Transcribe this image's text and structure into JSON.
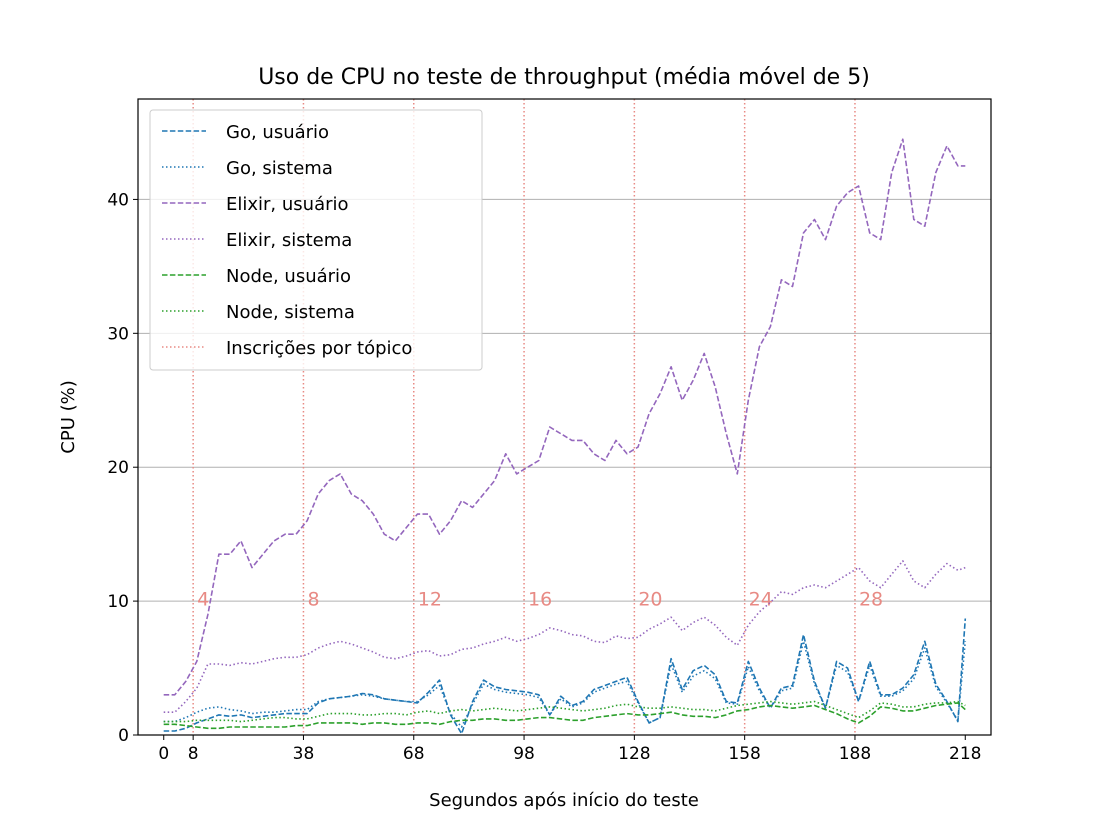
{
  "chart_data": {
    "type": "line",
    "title": "Uso de CPU no teste de throughput (média móvel de 5)",
    "xlabel": "Segundos após início do teste",
    "ylabel": "CPU (%)",
    "xlim": [
      -7,
      225
    ],
    "ylim": [
      0,
      47.5
    ],
    "xticks": [
      0,
      8,
      38,
      68,
      98,
      128,
      158,
      188,
      218
    ],
    "yticks": [
      0,
      10,
      20,
      30,
      40
    ],
    "grid": "y",
    "legend_position": "upper-left",
    "x": [
      0,
      3,
      6,
      9,
      12,
      15,
      18,
      21,
      24,
      27,
      30,
      33,
      36,
      39,
      42,
      45,
      48,
      51,
      54,
      57,
      60,
      63,
      66,
      69,
      72,
      75,
      78,
      81,
      84,
      87,
      90,
      93,
      96,
      99,
      102,
      105,
      108,
      111,
      114,
      117,
      120,
      123,
      126,
      129,
      132,
      135,
      138,
      141,
      144,
      147,
      150,
      153,
      156,
      159,
      162,
      165,
      168,
      171,
      174,
      177,
      180,
      183,
      186,
      189,
      192,
      195,
      198,
      201,
      204,
      207,
      210,
      213,
      216,
      218
    ],
    "series": [
      {
        "name": "Go, usuário",
        "color": "#1f77b4",
        "dash": "dashed",
        "values": [
          0.3,
          0.3,
          0.5,
          0.9,
          1.2,
          1.5,
          1.4,
          1.5,
          1.3,
          1.4,
          1.5,
          1.6,
          1.6,
          1.6,
          2.4,
          2.7,
          2.8,
          2.9,
          3.1,
          3.0,
          2.7,
          2.6,
          2.5,
          2.4,
          3.2,
          4.1,
          1.5,
          0.1,
          2.5,
          4.1,
          3.6,
          3.4,
          3.3,
          3.2,
          3.0,
          1.5,
          2.9,
          2.2,
          2.5,
          3.4,
          3.7,
          4.0,
          4.3,
          2.5,
          0.9,
          1.3,
          5.7,
          3.4,
          4.8,
          5.2,
          4.5,
          2.5,
          2.4,
          5.5,
          3.5,
          2.0,
          3.5,
          3.7,
          7.5,
          4.0,
          2.0,
          5.5,
          5.0,
          2.5,
          5.5,
          3.0,
          3.0,
          3.5,
          4.5,
          7.0,
          3.8,
          2.5,
          1.0,
          8.7
        ]
      },
      {
        "name": "Go, sistema",
        "color": "#1f77b4",
        "dash": "dotted",
        "values": [
          1.0,
          1.0,
          1.3,
          1.7,
          2.0,
          2.1,
          1.9,
          1.8,
          1.6,
          1.7,
          1.7,
          1.8,
          1.9,
          1.9,
          2.5,
          2.7,
          2.8,
          2.9,
          3.0,
          2.9,
          2.7,
          2.6,
          2.5,
          2.5,
          3.0,
          3.7,
          1.6,
          0.6,
          2.3,
          3.8,
          3.4,
          3.2,
          3.1,
          3.0,
          2.8,
          1.5,
          2.7,
          2.1,
          2.4,
          3.2,
          3.5,
          3.8,
          4.0,
          2.4,
          0.9,
          1.3,
          5.3,
          3.2,
          4.4,
          4.8,
          4.2,
          2.4,
          2.3,
          5.1,
          3.3,
          2.0,
          3.3,
          3.5,
          7.0,
          3.8,
          2.0,
          5.2,
          4.7,
          2.5,
          5.2,
          2.9,
          2.9,
          3.3,
          4.2,
          6.5,
          3.6,
          2.4,
          1.1,
          7.0
        ]
      },
      {
        "name": "Elixir, usuário",
        "color": "#9467bd",
        "dash": "dashed",
        "values": [
          3.0,
          3.0,
          4.0,
          5.5,
          9.0,
          13.5,
          13.5,
          14.5,
          12.5,
          13.5,
          14.5,
          15.0,
          15.0,
          16.0,
          18.0,
          19.0,
          19.5,
          18.0,
          17.5,
          16.5,
          15.0,
          14.5,
          15.5,
          16.5,
          16.5,
          15.0,
          16.0,
          17.5,
          17.0,
          18.0,
          19.0,
          21.0,
          19.5,
          20.0,
          20.5,
          23.0,
          22.5,
          22.0,
          22.0,
          21.0,
          20.5,
          22.0,
          21.0,
          21.5,
          24.0,
          25.5,
          27.5,
          25.0,
          26.5,
          28.5,
          26.0,
          22.5,
          19.5,
          25.0,
          29.0,
          30.5,
          34.0,
          33.5,
          37.5,
          38.5,
          37.0,
          39.5,
          40.5,
          41.0,
          37.5,
          37.0,
          42.0,
          44.5,
          38.5,
          38.0,
          42.0,
          44.0,
          42.5,
          42.5
        ]
      },
      {
        "name": "Elixir, sistema",
        "color": "#9467bd",
        "dash": "dotted",
        "values": [
          1.7,
          1.7,
          2.5,
          3.5,
          5.3,
          5.3,
          5.2,
          5.4,
          5.3,
          5.5,
          5.7,
          5.8,
          5.8,
          6.0,
          6.5,
          6.8,
          7.0,
          6.8,
          6.5,
          6.2,
          5.8,
          5.7,
          5.9,
          6.2,
          6.3,
          5.9,
          6.0,
          6.4,
          6.5,
          6.8,
          7.0,
          7.3,
          7.0,
          7.2,
          7.5,
          8.0,
          7.8,
          7.5,
          7.4,
          7.0,
          6.9,
          7.4,
          7.2,
          7.3,
          7.9,
          8.3,
          8.8,
          7.8,
          8.4,
          8.8,
          8.2,
          7.3,
          6.7,
          8.2,
          9.2,
          9.9,
          10.7,
          10.5,
          11.0,
          11.2,
          11.0,
          11.5,
          12.0,
          12.5,
          11.5,
          11.0,
          12.0,
          13.0,
          11.5,
          11.0,
          12.0,
          12.8,
          12.3,
          12.5
        ]
      },
      {
        "name": "Node, usuário",
        "color": "#2ca02c",
        "dash": "dashed",
        "values": [
          0.8,
          0.8,
          0.7,
          0.6,
          0.5,
          0.5,
          0.6,
          0.6,
          0.6,
          0.6,
          0.6,
          0.6,
          0.7,
          0.7,
          0.9,
          0.9,
          0.9,
          0.9,
          0.8,
          0.9,
          0.9,
          0.8,
          0.8,
          0.9,
          0.9,
          0.8,
          1.0,
          1.1,
          1.1,
          1.2,
          1.2,
          1.1,
          1.1,
          1.2,
          1.3,
          1.3,
          1.2,
          1.1,
          1.1,
          1.3,
          1.4,
          1.5,
          1.6,
          1.5,
          1.5,
          1.6,
          1.7,
          1.5,
          1.4,
          1.4,
          1.3,
          1.5,
          1.8,
          1.9,
          2.1,
          2.2,
          2.1,
          2.0,
          2.1,
          2.2,
          1.9,
          1.6,
          1.2,
          0.9,
          1.4,
          2.1,
          2.0,
          1.8,
          1.8,
          2.0,
          2.2,
          2.3,
          2.4,
          1.9
        ]
      },
      {
        "name": "Node, sistema",
        "color": "#2ca02c",
        "dash": "dotted",
        "values": [
          1.0,
          1.0,
          1.0,
          1.1,
          1.1,
          1.1,
          1.1,
          1.0,
          1.1,
          1.2,
          1.3,
          1.3,
          1.2,
          1.2,
          1.4,
          1.6,
          1.6,
          1.6,
          1.5,
          1.5,
          1.6,
          1.6,
          1.5,
          1.7,
          1.8,
          1.6,
          1.8,
          1.9,
          1.8,
          1.9,
          2.0,
          1.9,
          1.8,
          1.9,
          2.0,
          2.1,
          2.0,
          1.9,
          1.8,
          1.9,
          2.0,
          2.2,
          2.3,
          2.1,
          2.0,
          2.0,
          2.1,
          2.0,
          1.9,
          1.9,
          1.8,
          2.0,
          2.2,
          2.3,
          2.4,
          2.5,
          2.4,
          2.3,
          2.4,
          2.5,
          2.2,
          1.9,
          1.6,
          1.3,
          1.8,
          2.4,
          2.3,
          2.1,
          2.1,
          2.3,
          2.4,
          2.4,
          2.5,
          2.2
        ]
      }
    ],
    "markers": {
      "name": "Inscrições por tópico",
      "color": "#e88a84",
      "x": [
        8,
        38,
        68,
        98,
        128,
        158,
        188
      ],
      "labels": [
        "4",
        "8",
        "12",
        "16",
        "20",
        "24",
        "28"
      ],
      "label_y": 10.2
    }
  }
}
